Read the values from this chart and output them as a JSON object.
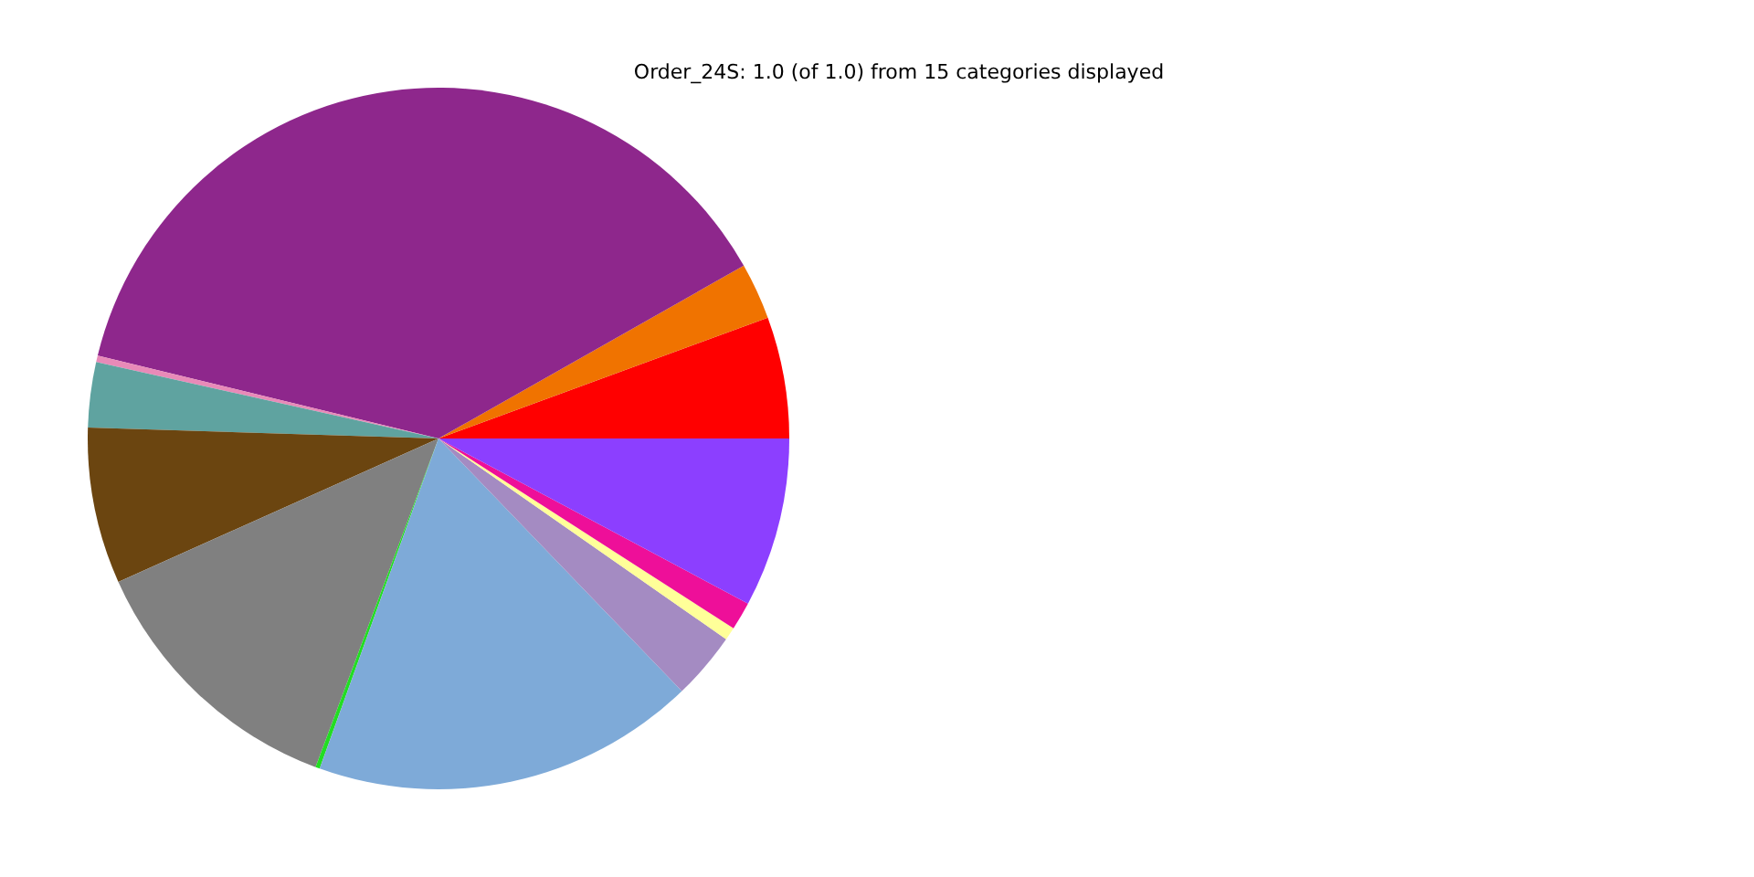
{
  "chart_data": {
    "type": "pie",
    "title": "Order_24S: 1.0 (of 1.0) from 15 categories displayed",
    "categories": [
      null,
      null,
      null,
      null,
      null,
      null,
      null,
      null,
      null,
      null,
      null,
      null,
      null
    ],
    "values": [
      5.6,
      2.6,
      38.0,
      0.3,
      3.0,
      7.2,
      12.6,
      0.2,
      17.7,
      3.1,
      0.6,
      1.3,
      7.8
    ],
    "colors": [
      "#ff0000",
      "#f07300",
      "#8e278c",
      "#e88ab8",
      "#5fa3a0",
      "#6b4510",
      "#808080",
      "#22dd22",
      "#7eaad8",
      "#a48bc2",
      "#ffff99",
      "#ee0f99",
      "#8c3fff"
    ],
    "legend": false
  }
}
